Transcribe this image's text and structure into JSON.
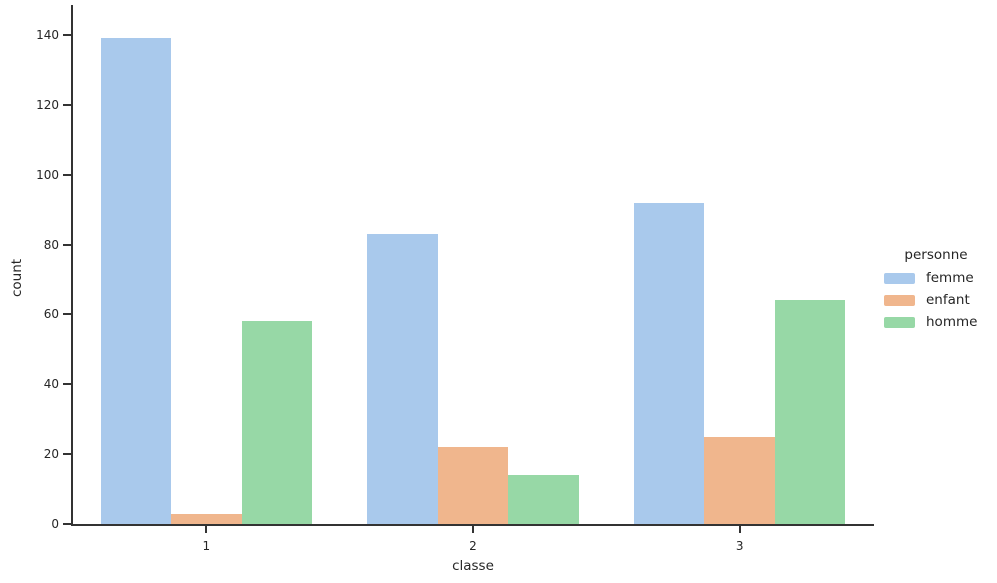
{
  "chart_data": {
    "type": "bar",
    "grouped": true,
    "title": "",
    "xlabel": "classe",
    "ylabel": "count",
    "categories": [
      "1",
      "2",
      "3"
    ],
    "series": [
      {
        "name": "femme",
        "color": "#a9c9ec",
        "values": [
          139,
          83,
          92
        ]
      },
      {
        "name": "enfant",
        "color": "#f0b68d",
        "values": [
          3,
          22,
          25
        ]
      },
      {
        "name": "homme",
        "color": "#97d8a6",
        "values": [
          58,
          14,
          64
        ]
      }
    ],
    "yticks": [
      0,
      20,
      40,
      60,
      80,
      100,
      120,
      140
    ],
    "ylim": [
      0,
      150
    ],
    "grid": false,
    "legend": {
      "title": "personne",
      "position": "center-right-outside"
    },
    "style": {
      "spine_color": "#333333",
      "text_color": "#262626",
      "background": "#ffffff"
    }
  }
}
